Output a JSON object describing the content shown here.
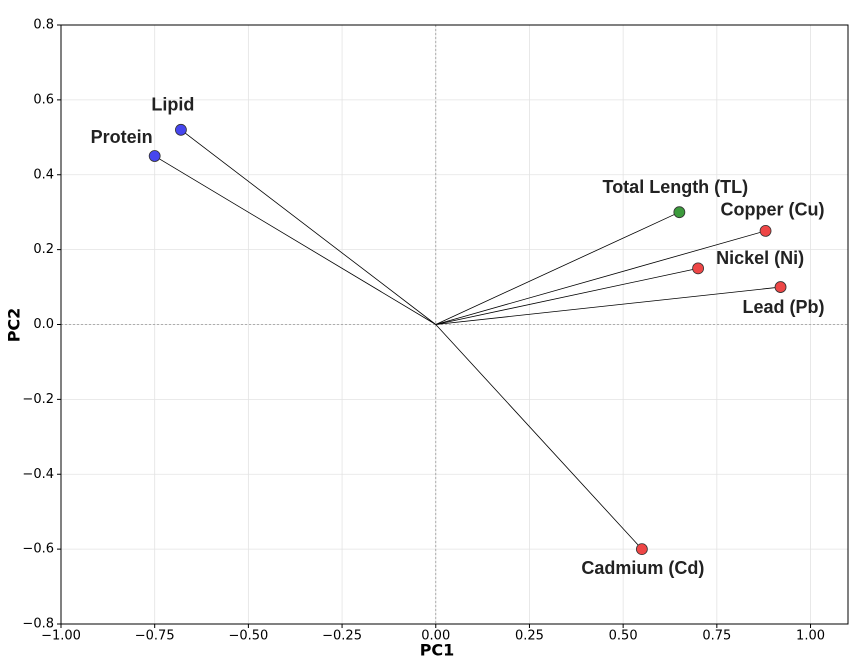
{
  "chart_data": {
    "type": "scatter",
    "x_label": "PC1",
    "y_label": "PC2",
    "labels": [
      "Protein",
      "Lipid",
      "Total Length (TL)",
      "Copper (Cu)",
      "Nickel (Ni)",
      "Lead (Pb)",
      "Cadmium (Cd)"
    ],
    "x": [
      -0.75,
      -0.68,
      0.65,
      0.88,
      0.7,
      0.92,
      0.55
    ],
    "values": [
      0.45,
      0.52,
      0.3,
      0.25,
      0.15,
      0.1,
      -0.6
    ],
    "colors": [
      "#4646ee",
      "#4646ee",
      "#3c9a3c",
      "#ee4646",
      "#ee4646",
      "#ee4646",
      "#ee4646"
    ],
    "xlim": [
      -1.0,
      1.1
    ],
    "ylim": [
      -0.8,
      0.8
    ],
    "xticks": [
      {
        "value": -1.0,
        "label": "−1.00"
      },
      {
        "value": -0.75,
        "label": "−0.75"
      },
      {
        "value": -0.5,
        "label": "−0.50"
      },
      {
        "value": -0.25,
        "label": "−0.25"
      },
      {
        "value": 0,
        "label": "0.00"
      },
      0.25,
      {
        "value": 0.5,
        "label": "0.50"
      },
      0.75,
      {
        "value": 1.0,
        "label": "1.00"
      }
    ],
    "yticks": [
      {
        "value": -0.8,
        "label": "−0.8"
      },
      {
        "value": -0.6,
        "label": "−0.6"
      },
      {
        "value": -0.4,
        "label": "−0.4"
      },
      {
        "value": -0.2,
        "label": "−0.2"
      },
      {
        "value": 0,
        "label": "0.0"
      },
      0.2,
      0.4,
      0.6,
      0.8
    ],
    "grid": true
  }
}
